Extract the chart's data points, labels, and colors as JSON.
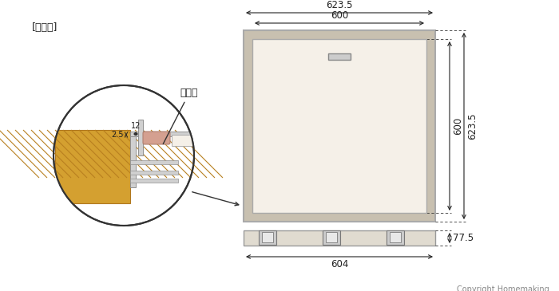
{
  "bg_color": "#ffffff",
  "label_fusawaku": "[蕎・搶]",
  "label_kimitsuzai": "気密材",
  "dim_top_outer": "623.5",
  "dim_top_inner": "600",
  "dim_right_inner": "600",
  "dim_right_outer": "623.5",
  "dim_bottom_width": "604",
  "dim_bottom_height": "77.5",
  "dim_small_12": "12",
  "dim_small_25": "2.5",
  "copyright": "Copyright Homemaking",
  "panel_fill": "#f5f0e8",
  "frame_fill": "#c8c0b0",
  "frame_edge": "#aaaaaa",
  "wood_fill": "#d4a030",
  "wood_hatch": "#b88020",
  "seal_fill": "#d4a090",
  "metal_fill": "#d0d0d0",
  "metal_edge": "#909090",
  "line_color": "#333333",
  "dim_color": "#222222",
  "text_color": "#222222",
  "gray_text": "#888888"
}
